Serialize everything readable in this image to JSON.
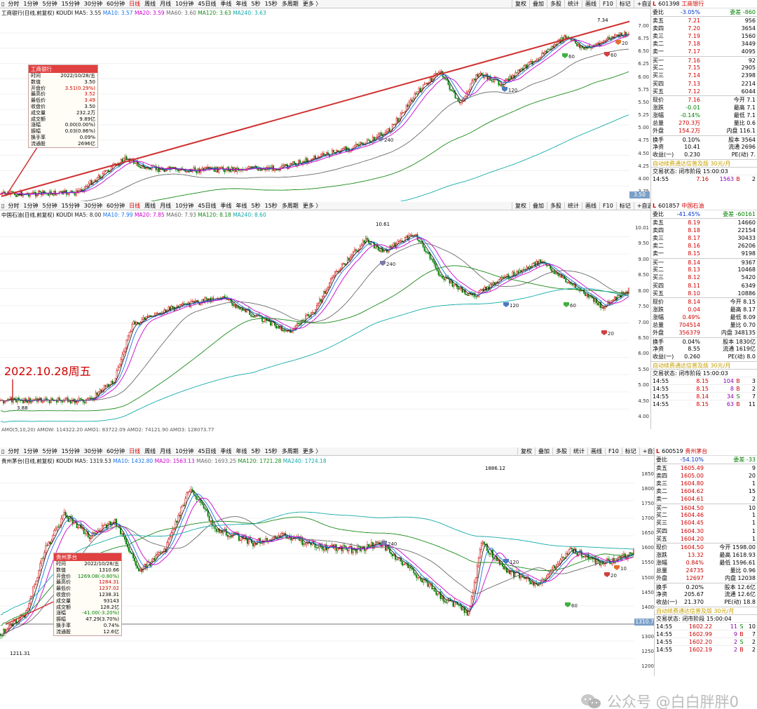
{
  "toolbar": {
    "items": [
      "分时",
      "1分钟",
      "5分钟",
      "15分钟",
      "30分钟",
      "60分钟",
      "日线",
      "周线",
      "月线",
      "10分钟",
      "45日线",
      "季线",
      "年线",
      "5秒",
      "15秒",
      "多周期",
      "更多"
    ],
    "active": "日线",
    "buttons": [
      "复权",
      "叠加",
      "多股",
      "统计",
      "画线",
      "F10",
      "标记",
      "+自选",
      "返回"
    ]
  },
  "panel1": {
    "legend": {
      "name": "工商银行(日线,前复权)",
      "k": "KOUDI",
      "ma5": "MA5: 3.55",
      "ma10": "MA10: 3.57",
      "ma20": "MA20: 3.59",
      "ma60": "MA60: 3.60",
      "ma120": "MA120: 3.63",
      "ma240": "MA240: 3.63"
    },
    "ticks": [
      "7.00",
      "6.75",
      "6.50",
      "6.25",
      "6.00",
      "5.75",
      "5.50",
      "5.25",
      "5.00",
      "4.75",
      "4.50",
      "4.25",
      "4.00",
      "3.75"
    ],
    "current_price": "3.50",
    "high_label": "7.34",
    "marks": [
      "240",
      "120",
      "60",
      "60",
      "20"
    ],
    "infobox": {
      "title": "工商银行",
      "rows": [
        {
          "k": "时间",
          "v": "2022/10/28/五"
        },
        {
          "k": "数值",
          "v": "3.50"
        },
        {
          "k": "开盘价",
          "v": "3.51(0.29%)"
        },
        {
          "k": "最高价",
          "v": "3.52"
        },
        {
          "k": "最低价",
          "v": "3.49"
        },
        {
          "k": "收盘价",
          "v": "3.50"
        },
        {
          "k": "成交量",
          "v": "232.2万"
        },
        {
          "k": "成交额",
          "v": "9.89亿"
        },
        {
          "k": "涨幅",
          "v": "0.00(0.00%)"
        },
        {
          "k": "振幅",
          "v": "0.03(0.86%)"
        },
        {
          "k": "换手率",
          "v": "0.09%"
        },
        {
          "k": "流通股",
          "v": "2696亿"
        }
      ]
    },
    "quote": {
      "code": "601398",
      "name": "工商银行",
      "rows": [
        {
          "l": "委比",
          "m": "-3.05%",
          "r": "委差 -860"
        },
        {
          "l": "卖五",
          "m": "7.21",
          "r": "956"
        },
        {
          "l": "卖四",
          "m": "7.20",
          "r": "3654"
        },
        {
          "l": "卖三",
          "m": "7.19",
          "r": "1560"
        },
        {
          "l": "卖二",
          "m": "7.18",
          "r": "3449"
        },
        {
          "l": "卖一",
          "m": "7.17",
          "r": "4095"
        },
        {
          "l": "买一",
          "m": "7.16",
          "r": "92"
        },
        {
          "l": "买二",
          "m": "7.15",
          "r": "2905"
        },
        {
          "l": "买三",
          "m": "7.14",
          "r": "2398"
        },
        {
          "l": "买四",
          "m": "7.13",
          "r": "2214"
        },
        {
          "l": "买五",
          "m": "7.12",
          "r": "6044"
        },
        {
          "l": "现价",
          "m": "7.16",
          "r": "今开 7.1"
        },
        {
          "l": "涨跌",
          "m": "-0.01",
          "r": "最高 7.1"
        },
        {
          "l": "涨幅",
          "m": "-0.14%",
          "r": "最低 7.1"
        },
        {
          "l": "总量",
          "m": "270.3万",
          "r": "量比 0.6"
        },
        {
          "l": "外盘",
          "m": "154.2万",
          "r": "内盘 116.1"
        },
        {
          "l": "换手",
          "m": "0.10%",
          "r": "股本 3564"
        },
        {
          "l": "净资",
          "m": "10.41",
          "r": "流通 2696"
        },
        {
          "l": "收益(一)",
          "m": "0.230",
          "r": "PE(动) 7."
        }
      ],
      "promo": "自动续费通达信普及版 30元/月",
      "state": "交易状态: 闭市阶段 15:00:03",
      "ticks": [
        {
          "t": "14:55",
          "p": "7.16",
          "v": "1563",
          "d": "B",
          "n": "2"
        }
      ]
    }
  },
  "panel2": {
    "legend": {
      "name": "中国石油(日线,前复权)",
      "k": "KOUDI",
      "ma5": "MA5: 8.00",
      "ma10": "MA10: 7.99",
      "ma20": "MA20: 7.85",
      "ma60": "MA60: 7.93",
      "ma120": "MA120: 8.18",
      "ma240": "MA240: 8.60"
    },
    "ticks": [
      "10.01",
      "9.50",
      "9.00",
      "8.50",
      "8.00",
      "7.50",
      "7.00",
      "6.50",
      "6.00",
      "5.50",
      "5.00",
      "4.50",
      "4.00"
    ],
    "high_label": "10.61",
    "low_label": "3.88",
    "marks": [
      "240",
      "120",
      "60",
      "20"
    ],
    "annotation": "2022.10.28周五",
    "amo_line": "AMO(5,10,20)  AMOW: 114322.20  AMO1: 83722.09  AMO2: 74121.90  AMO3: 128073.77",
    "quote": {
      "code": "601857",
      "name": "中国石油",
      "rows": [
        {
          "l": "委比",
          "m": "-41.45%",
          "r": "委差 -60161"
        },
        {
          "l": "卖五",
          "m": "8.19",
          "r": "14660"
        },
        {
          "l": "卖四",
          "m": "8.18",
          "r": "22154"
        },
        {
          "l": "卖三",
          "m": "8.17",
          "r": "30433"
        },
        {
          "l": "卖二",
          "m": "8.16",
          "r": "26206"
        },
        {
          "l": "卖一",
          "m": "8.15",
          "r": "9198"
        },
        {
          "l": "买一",
          "m": "8.14",
          "r": "9367"
        },
        {
          "l": "买二",
          "m": "8.13",
          "r": "10468"
        },
        {
          "l": "买三",
          "m": "8.12",
          "r": "5420"
        },
        {
          "l": "买四",
          "m": "8.11",
          "r": "6349"
        },
        {
          "l": "买五",
          "m": "8.10",
          "r": "10886"
        },
        {
          "l": "现价",
          "m": "8.14",
          "r": "今开 8.15"
        },
        {
          "l": "涨跌",
          "m": "0.04",
          "r": "最高 8.17"
        },
        {
          "l": "涨幅",
          "m": "0.49%",
          "r": "最低 8.09"
        },
        {
          "l": "总量",
          "m": "704514",
          "r": "量比 0.70"
        },
        {
          "l": "外盘",
          "m": "356379",
          "r": "内盘 348135"
        },
        {
          "l": "换手",
          "m": "0.04%",
          "r": "股本 1830亿"
        },
        {
          "l": "净资",
          "m": "8.55",
          "r": "流通 1619亿"
        },
        {
          "l": "收益(一)",
          "m": "0.260",
          "r": "PE(动) 8.0"
        }
      ],
      "promo": "自动续费通达信普及版 30元/月",
      "state": "交易状态: 闭市阶段 15:00:03",
      "ticks": [
        {
          "t": "14:55",
          "p": "8.15",
          "v": "104",
          "d": "B",
          "n": "3"
        },
        {
          "t": "14:55",
          "p": "8.15",
          "v": "8",
          "d": "B",
          "n": "2"
        },
        {
          "t": "14:55",
          "p": "8.14",
          "v": "34",
          "d": "S",
          "n": "7"
        },
        {
          "t": "14:55",
          "p": "8.15",
          "v": "63",
          "d": "B",
          "n": "11"
        }
      ]
    }
  },
  "panel3": {
    "legend": {
      "name": "贵州茅台(日线,前复权)",
      "k": "KOUDI",
      "ma5": "MA5: 1319.53",
      "ma10": "MA10: 1432.80",
      "ma20": "MA20: 1563.13",
      "ma60": "MA60: 1693.25",
      "ma120": "MA120: 1721.28",
      "ma240": "MA240: 1724.18"
    },
    "ticks": [
      "1850",
      "1800",
      "1750",
      "1700",
      "1650",
      "1600",
      "1550",
      "1500",
      "1450",
      "1400",
      "1350",
      "1300",
      "1250",
      "1200"
    ],
    "current_price": "1310.7",
    "high_label": "1886.12",
    "low_label": "1211.31",
    "marks": [
      "240",
      "120",
      "60",
      "20",
      "10"
    ],
    "infobox": {
      "title": "贵州茅台",
      "rows": [
        {
          "k": "时间",
          "v": "2022/10/28/五"
        },
        {
          "k": "数值",
          "v": "1310.66"
        },
        {
          "k": "开盘价",
          "v": "1269.08(-0.80%)"
        },
        {
          "k": "最高价",
          "v": "1284.31"
        },
        {
          "k": "最低价",
          "v": "1237.02"
        },
        {
          "k": "收盘价",
          "v": "1238.31"
        },
        {
          "k": "成交量",
          "v": "93143"
        },
        {
          "k": "成交额",
          "v": "128.2亿"
        },
        {
          "k": "涨幅",
          "v": "-41.00(-3.20%)"
        },
        {
          "k": "振幅",
          "v": "47.29(3.70%)"
        },
        {
          "k": "换手率",
          "v": "0.74%"
        },
        {
          "k": "流通股",
          "v": "12.6亿"
        }
      ]
    },
    "quote": {
      "code": "600519",
      "name": "贵州茅台",
      "rows": [
        {
          "l": "委比",
          "m": "-54.10%",
          "r": "委差 -33"
        },
        {
          "l": "卖五",
          "m": "1605.49",
          "r": "9"
        },
        {
          "l": "卖四",
          "m": "1605.00",
          "r": "20"
        },
        {
          "l": "卖三",
          "m": "1604.80",
          "r": "1"
        },
        {
          "l": "卖二",
          "m": "1604.62",
          "r": "15"
        },
        {
          "l": "卖一",
          "m": "1604.61",
          "r": "2"
        },
        {
          "l": "买一",
          "m": "1604.50",
          "r": "10"
        },
        {
          "l": "买二",
          "m": "1604.46",
          "r": "1"
        },
        {
          "l": "买三",
          "m": "1604.45",
          "r": "1"
        },
        {
          "l": "买四",
          "m": "1604.30",
          "r": "1"
        },
        {
          "l": "买五",
          "m": "1604.20",
          "r": "1"
        },
        {
          "l": "现价",
          "m": "1604.50",
          "r": "今开 1598.00"
        },
        {
          "l": "涨跌",
          "m": "13.32",
          "r": "最高 1618.93"
        },
        {
          "l": "涨幅",
          "m": "0.84%",
          "r": "最低 1596.61"
        },
        {
          "l": "总量",
          "m": "24735",
          "r": "量比 0.96"
        },
        {
          "l": "外盘",
          "m": "12697",
          "r": "内盘 12038"
        },
        {
          "l": "换手",
          "m": "0.20%",
          "r": "股本 12.6亿"
        },
        {
          "l": "净资",
          "m": "205.67",
          "r": "流通 12.6亿"
        },
        {
          "l": "收益(一)",
          "m": "21.370",
          "r": "PE(动) 18.8"
        }
      ],
      "promo": "自动续费通达信普及版 30元/月",
      "state": "交易状态: 闭市阶段 15:00:04",
      "ticks": [
        {
          "t": "14:55",
          "p": "1602.22",
          "v": "11",
          "d": "S",
          "n": "10"
        },
        {
          "t": "14:55",
          "p": "1602.99",
          "v": "9",
          "d": "B",
          "n": "7"
        },
        {
          "t": "14:55",
          "p": "1602.20",
          "v": "2",
          "d": "S",
          "n": "2"
        },
        {
          "t": "14:55",
          "p": "1602.19",
          "v": "2",
          "d": "B",
          "n": "2"
        }
      ]
    }
  },
  "watermark": "公众号 @白白胖胖0",
  "colors": {
    "up": "#d00000",
    "down": "#008000",
    "ma5": "#222222",
    "ma10": "#1a73e8",
    "ma20": "#cc00cc",
    "ma60": "#6a6a6a",
    "ma120": "#1a8a1a",
    "ma240": "#14aaaa",
    "annotation": "#d03030"
  }
}
